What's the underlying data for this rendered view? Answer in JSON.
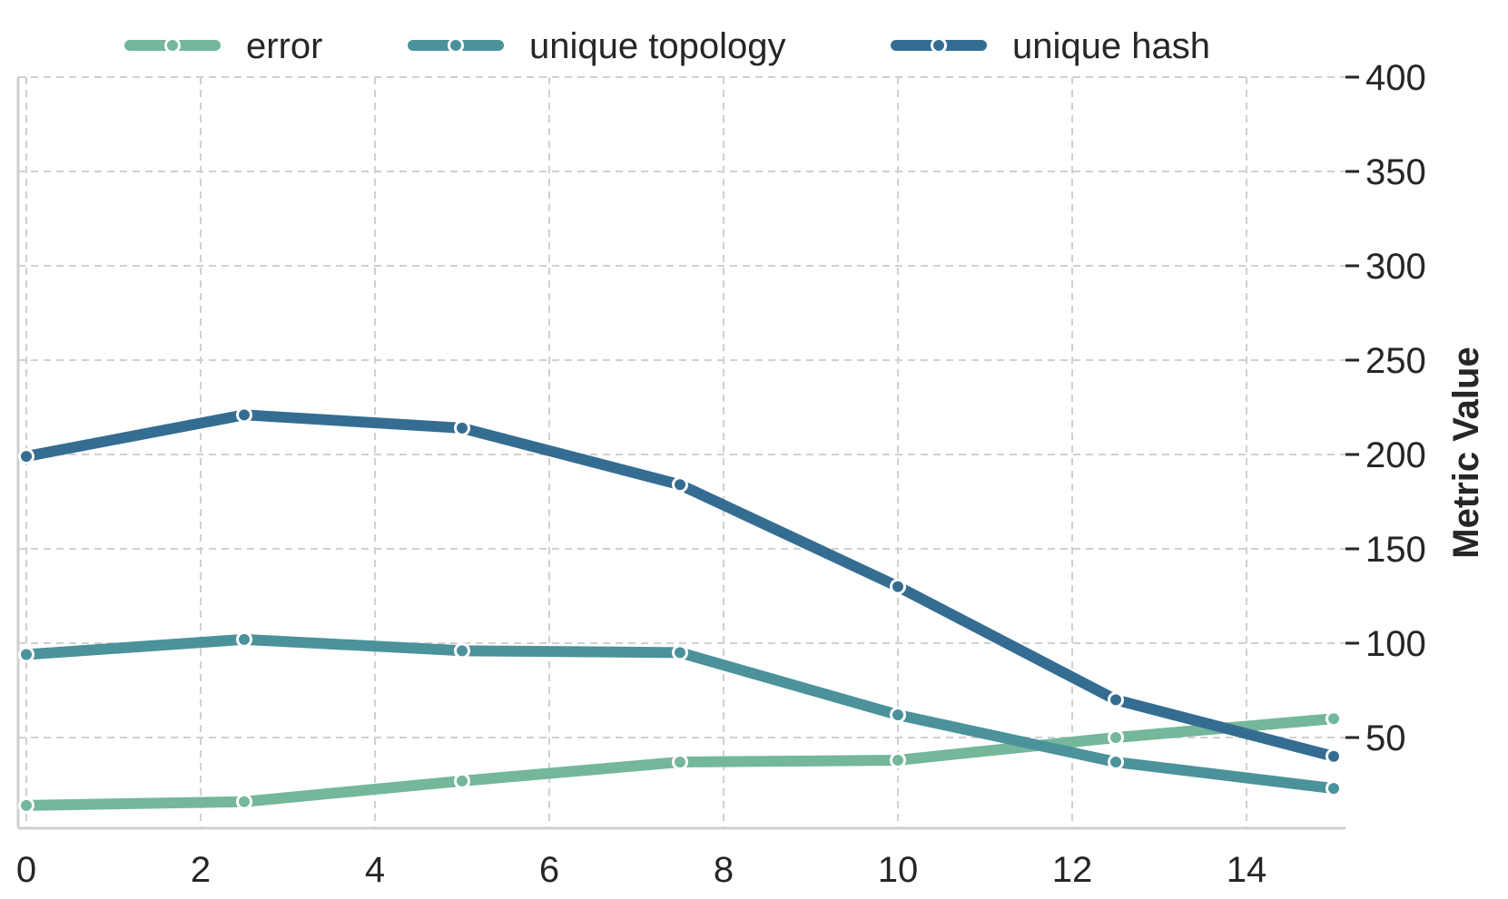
{
  "chart_data": {
    "type": "line",
    "title": "",
    "xlabel": "",
    "ylabel": "Metric Value",
    "xlim": [
      0,
      15
    ],
    "ylim": [
      0,
      400
    ],
    "xticks": [
      0,
      2,
      4,
      6,
      8,
      10,
      12,
      14
    ],
    "yticks": [
      50,
      100,
      150,
      200,
      250,
      300,
      350,
      400
    ],
    "y_axis_side": "right",
    "grid": true,
    "legend_position": "top",
    "series": [
      {
        "name": "error",
        "color": "#74b79b",
        "x": [
          0,
          2.5,
          5,
          7.5,
          10,
          12.5,
          15
        ],
        "y": [
          14,
          16,
          27,
          37,
          38,
          50,
          60
        ]
      },
      {
        "name": "unique topology",
        "color": "#4b929b",
        "x": [
          0,
          2.5,
          5,
          7.5,
          10,
          12.5,
          15
        ],
        "y": [
          94,
          102,
          96,
          95,
          62,
          37,
          23
        ]
      },
      {
        "name": "unique hash",
        "color": "#356d92",
        "x": [
          0,
          2.5,
          5,
          7.5,
          10,
          12.5,
          15
        ],
        "y": [
          199,
          221,
          214,
          184,
          130,
          70,
          40
        ]
      }
    ]
  }
}
